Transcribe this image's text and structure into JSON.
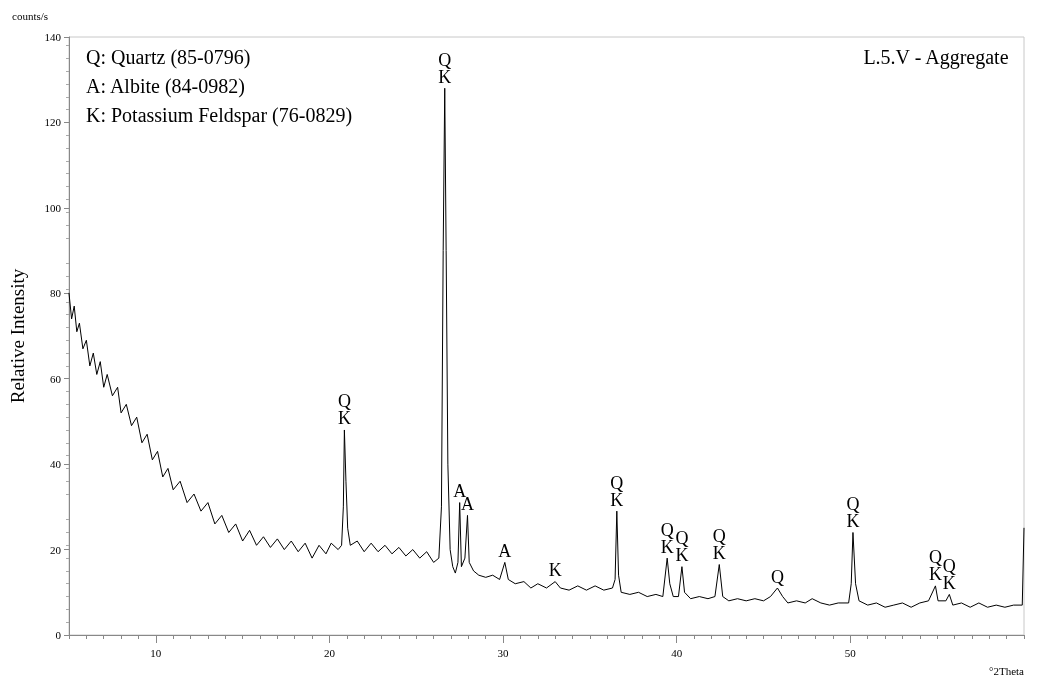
{
  "chart_data": {
    "type": "line",
    "title": "L.5.V - Aggregate",
    "xlabel": "°2Theta",
    "ylabel": "Relative Intensity",
    "annotations": [
      "counts/s",
      "Q: Quartz (85-0796)",
      "A: Albite (84-0982)",
      "K: Potassium Feldspar (76-0829)",
      {
        "text": "Q\nK",
        "x": 20.86,
        "y": 48
      },
      {
        "text": "Q\nK",
        "x": 26.64,
        "y": 128
      },
      {
        "text": "A",
        "x": 27.5,
        "y": 31
      },
      {
        "text": "A",
        "x": 27.95,
        "y": 28
      },
      {
        "text": "A",
        "x": 30.1,
        "y": 17
      },
      {
        "text": "K",
        "x": 33.0,
        "y": 12.5
      },
      {
        "text": "Q\nK",
        "x": 36.55,
        "y": 29
      },
      {
        "text": "Q\nK",
        "x": 39.45,
        "y": 18
      },
      {
        "text": "Q\nK",
        "x": 40.3,
        "y": 16
      },
      {
        "text": "Q\nK",
        "x": 42.45,
        "y": 16.5
      },
      {
        "text": "Q",
        "x": 45.8,
        "y": 11
      },
      {
        "text": "Q\nK",
        "x": 50.15,
        "y": 24
      },
      {
        "text": "Q\nK",
        "x": 54.9,
        "y": 11.5
      },
      {
        "text": "Q\nK",
        "x": 55.7,
        "y": 9.5
      }
    ],
    "x": [
      5.0,
      5.15,
      5.3,
      5.45,
      5.6,
      5.8,
      6.0,
      6.2,
      6.4,
      6.6,
      6.8,
      7.0,
      7.2,
      7.5,
      7.8,
      8.0,
      8.3,
      8.6,
      8.9,
      9.2,
      9.5,
      9.8,
      10.1,
      10.4,
      10.7,
      11.0,
      11.4,
      11.8,
      12.2,
      12.6,
      13.0,
      13.4,
      13.8,
      14.2,
      14.6,
      15.0,
      15.4,
      15.8,
      16.2,
      16.6,
      17.0,
      17.4,
      17.8,
      18.2,
      18.6,
      19.0,
      19.4,
      19.8,
      20.1,
      20.5,
      20.7,
      20.8,
      20.86,
      20.95,
      21.05,
      21.2,
      21.6,
      22.0,
      22.4,
      22.8,
      23.2,
      23.6,
      24.0,
      24.4,
      24.8,
      25.2,
      25.6,
      26.0,
      26.3,
      26.45,
      26.55,
      26.64,
      26.72,
      26.82,
      26.95,
      27.1,
      27.25,
      27.4,
      27.5,
      27.6,
      27.8,
      27.95,
      28.05,
      28.3,
      28.6,
      29.0,
      29.4,
      29.8,
      30.1,
      30.3,
      30.7,
      31.2,
      31.6,
      32.0,
      32.5,
      33.0,
      33.3,
      33.8,
      34.3,
      34.8,
      35.3,
      35.8,
      36.3,
      36.45,
      36.55,
      36.65,
      36.8,
      37.3,
      37.8,
      38.3,
      38.8,
      39.2,
      39.45,
      39.6,
      39.8,
      40.1,
      40.3,
      40.45,
      40.8,
      41.3,
      41.8,
      42.2,
      42.45,
      42.65,
      43.0,
      43.5,
      44.0,
      44.5,
      45.0,
      45.4,
      45.8,
      46.1,
      46.4,
      46.9,
      47.4,
      47.8,
      48.3,
      48.8,
      49.3,
      49.9,
      50.05,
      50.15,
      50.3,
      50.5,
      51.0,
      51.5,
      52.0,
      52.5,
      53.0,
      53.5,
      54.0,
      54.5,
      54.9,
      55.05,
      55.5,
      55.7,
      55.9,
      56.4,
      56.9,
      57.4,
      57.9,
      58.4,
      58.9,
      59.4,
      59.9,
      60.0
    ],
    "series": [
      {
        "color": "#000000",
        "values": [
          80,
          74,
          77,
          71,
          73,
          67,
          69,
          63,
          66,
          61,
          64,
          58,
          61,
          56,
          58,
          52,
          54,
          49,
          51,
          45,
          47,
          41,
          43,
          37,
          39,
          34,
          36,
          31,
          33,
          29,
          31,
          26,
          28,
          24,
          26,
          22,
          24.5,
          21,
          23,
          20.5,
          22.5,
          20,
          22,
          19.5,
          21.5,
          18,
          21,
          19,
          21.5,
          20,
          21,
          30,
          48,
          36,
          25,
          21,
          22,
          19.5,
          21.5,
          19.5,
          21,
          19,
          20.5,
          18.5,
          20,
          18,
          19.5,
          17,
          18,
          30,
          90,
          128,
          90,
          40,
          20,
          16,
          14.5,
          17,
          31,
          16,
          18,
          28,
          17,
          15,
          14,
          13.5,
          14,
          13,
          17,
          13,
          12,
          12.5,
          11,
          12,
          11,
          12.5,
          11,
          10.5,
          11.5,
          10.5,
          11.5,
          10.5,
          11,
          13,
          29,
          14,
          10,
          9.5,
          10,
          9,
          9.5,
          9,
          18,
          12,
          9,
          9,
          16,
          10,
          8.5,
          9,
          8.5,
          9,
          16.5,
          9,
          8,
          8.5,
          8,
          8.5,
          8,
          9,
          11,
          9,
          7.5,
          8,
          7.5,
          8.5,
          7.5,
          7,
          7.5,
          7.5,
          12,
          24,
          12,
          8,
          7,
          7.5,
          6.5,
          7,
          7.5,
          6.5,
          7.5,
          8,
          11.5,
          8,
          8,
          9.5,
          7,
          7.5,
          6.5,
          7.5,
          6.5,
          7,
          6.5,
          7,
          7,
          25
        ]
      }
    ],
    "xlim": [
      5,
      60
    ],
    "xticks": [
      10,
      20,
      30,
      40,
      50
    ],
    "ylim": [
      0,
      140
    ],
    "yticks": [
      0,
      20,
      40,
      60,
      80,
      100,
      120,
      140
    ],
    "grid": false,
    "marker": "none",
    "line_style": "solid"
  }
}
